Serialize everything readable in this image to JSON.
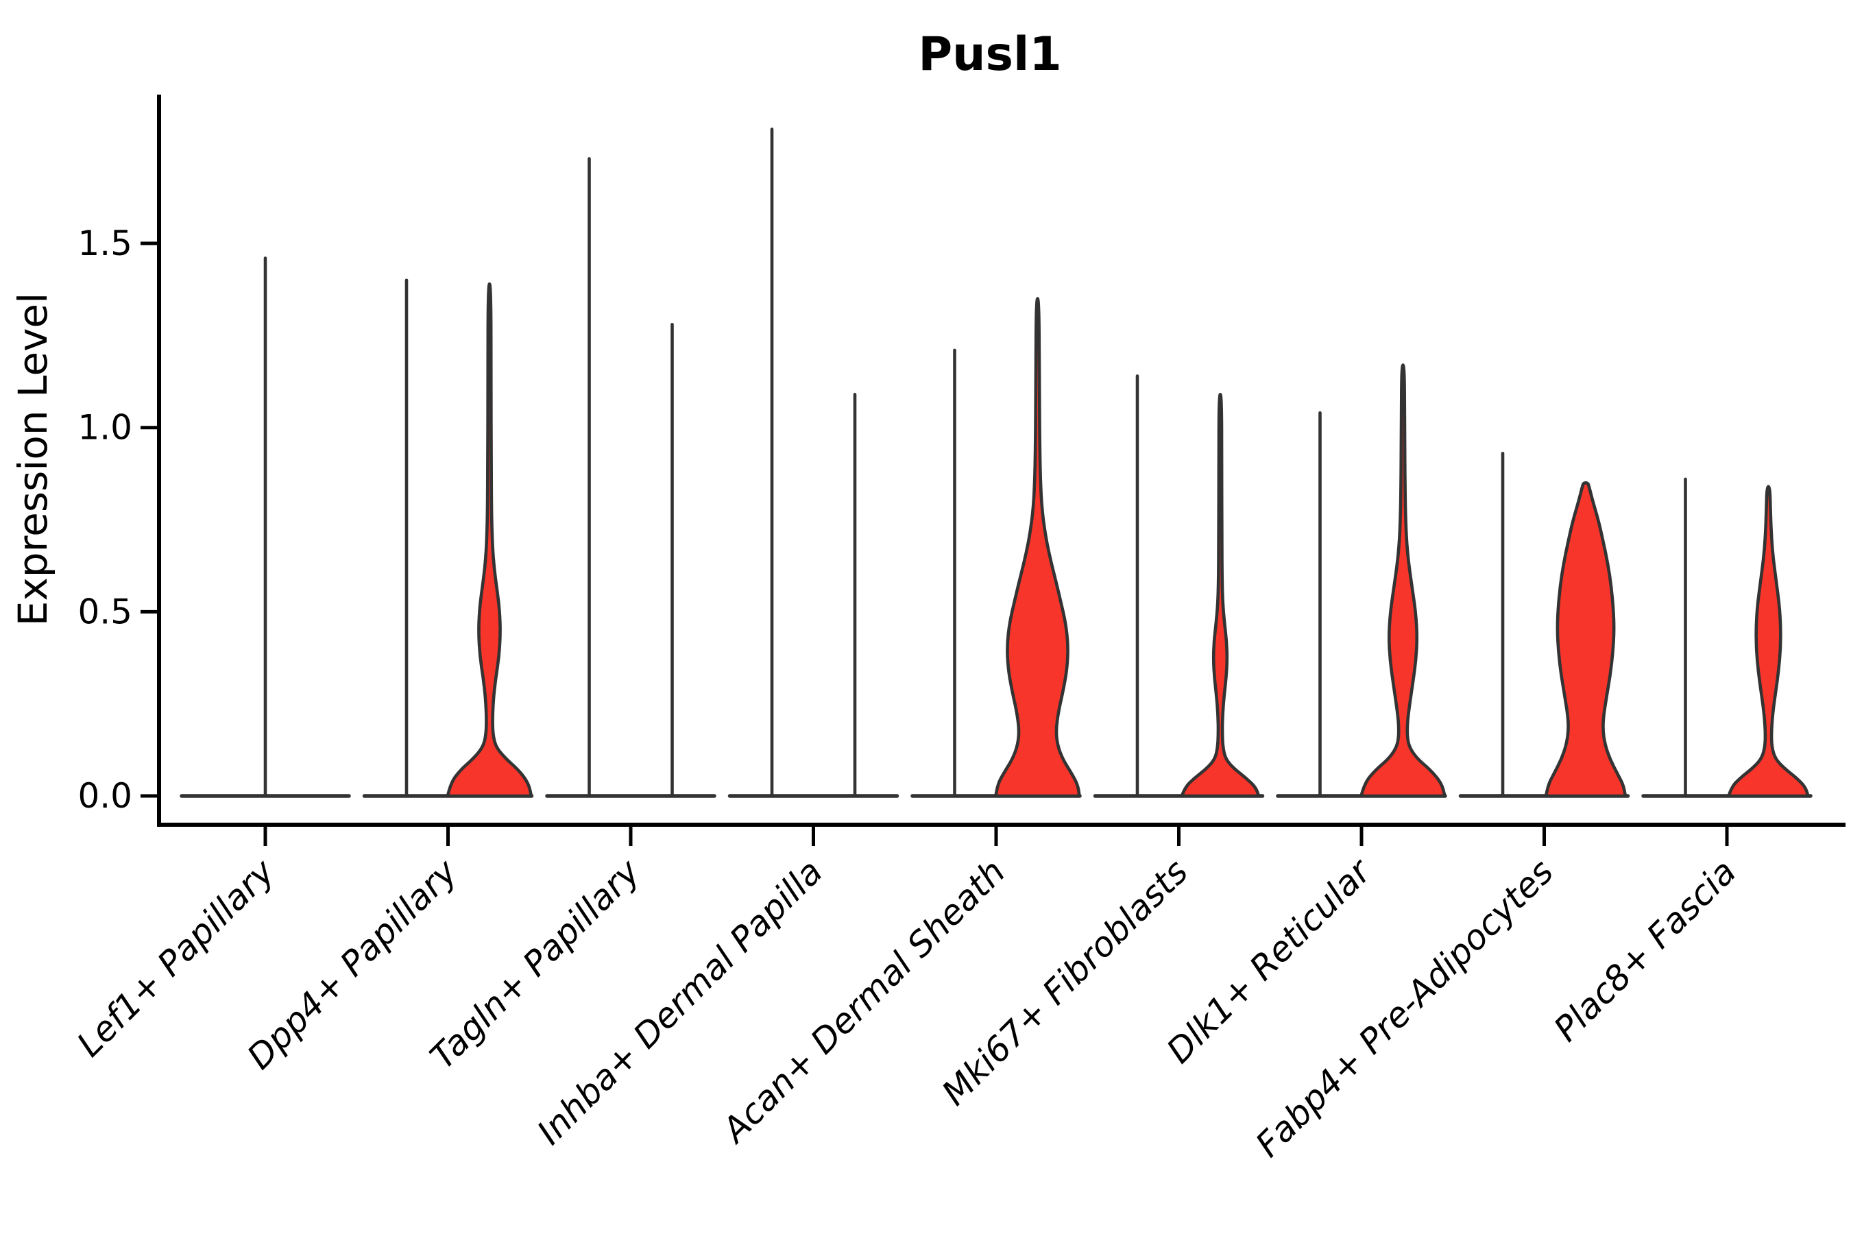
{
  "chart_data": {
    "type": "violin",
    "title": "Pusl1",
    "ylabel": "Expression Level",
    "xlabel": "",
    "legend": "none",
    "grid": false,
    "background_color": "#ffffff",
    "fill_color": "#F8352A",
    "outline_color": "#333333",
    "axis_color": "#000000",
    "ytick_labels": [
      "0.0",
      "0.5",
      "1.0",
      "1.5"
    ],
    "ytick_values": [
      0.0,
      0.5,
      1.0,
      1.5
    ],
    "ylim": [
      -0.08,
      1.9
    ],
    "categories": [
      "Lef1+ Papillary",
      "Dpp4+ Papillary",
      "Tagln+ Papillary",
      "Inhba+ Dermal Papilla",
      "Acan+ Dermal Sheath",
      "Mki67+ Fibroblasts",
      "Dlk1+ Reticular",
      "Fabp4+ Pre-Adipocytes",
      "Plac8+ Fascia"
    ],
    "violins": [
      {
        "category": "Lef1+ Papillary",
        "parts": [
          {
            "offset": 0,
            "kind": "spike",
            "max": 1.46
          }
        ]
      },
      {
        "category": "Dpp4+ Papillary",
        "parts": [
          {
            "offset": -1,
            "kind": "spike",
            "max": 1.4
          },
          {
            "offset": 1,
            "kind": "density",
            "max": 1.39,
            "profile": [
              [
                0,
                1.0
              ],
              [
                0.035,
                0.93
              ],
              [
                0.07,
                0.7
              ],
              [
                0.1,
                0.4
              ],
              [
                0.13,
                0.17
              ],
              [
                0.16,
                0.09
              ],
              [
                0.2,
                0.07
              ],
              [
                0.26,
                0.09
              ],
              [
                0.32,
                0.15
              ],
              [
                0.38,
                0.23
              ],
              [
                0.44,
                0.26
              ],
              [
                0.5,
                0.245
              ],
              [
                0.56,
                0.18
              ],
              [
                0.62,
                0.11
              ],
              [
                0.68,
                0.07
              ],
              [
                0.76,
                0.05
              ],
              [
                0.9,
                0.042
              ],
              [
                1.1,
                0.038
              ],
              [
                1.39,
                0.034
              ]
            ]
          }
        ]
      },
      {
        "category": "Tagln+ Papillary",
        "parts": [
          {
            "offset": -1,
            "kind": "spike",
            "max": 1.73
          },
          {
            "offset": 1,
            "kind": "spike",
            "max": 1.28
          }
        ]
      },
      {
        "category": "Inhba+ Dermal Papilla",
        "parts": [
          {
            "offset": -1,
            "kind": "spike",
            "max": 1.81
          },
          {
            "offset": 1,
            "kind": "spike",
            "max": 1.09
          }
        ]
      },
      {
        "category": "Acan+ Dermal Sheath",
        "parts": [
          {
            "offset": -1,
            "kind": "spike",
            "max": 1.21
          },
          {
            "offset": 1,
            "kind": "density",
            "max": 1.35,
            "profile": [
              [
                0,
                1.0
              ],
              [
                0.03,
                0.96
              ],
              [
                0.06,
                0.82
              ],
              [
                0.1,
                0.6
              ],
              [
                0.14,
                0.47
              ],
              [
                0.18,
                0.44
              ],
              [
                0.23,
                0.5
              ],
              [
                0.29,
                0.62
              ],
              [
                0.35,
                0.71
              ],
              [
                0.41,
                0.73
              ],
              [
                0.47,
                0.67
              ],
              [
                0.53,
                0.55
              ],
              [
                0.6,
                0.4
              ],
              [
                0.66,
                0.27
              ],
              [
                0.72,
                0.17
              ],
              [
                0.78,
                0.105
              ],
              [
                0.85,
                0.07
              ],
              [
                0.95,
                0.052
              ],
              [
                1.1,
                0.042
              ],
              [
                1.35,
                0.034
              ]
            ]
          }
        ]
      },
      {
        "category": "Mki67+ Fibroblasts",
        "parts": [
          {
            "offset": -1,
            "kind": "spike",
            "max": 1.14
          },
          {
            "offset": 1,
            "kind": "density",
            "max": 1.09,
            "profile": [
              [
                0,
                0.92
              ],
              [
                0.025,
                0.84
              ],
              [
                0.05,
                0.6
              ],
              [
                0.075,
                0.32
              ],
              [
                0.1,
                0.13
              ],
              [
                0.13,
                0.065
              ],
              [
                0.17,
                0.048
              ],
              [
                0.22,
                0.055
              ],
              [
                0.27,
                0.09
              ],
              [
                0.32,
                0.14
              ],
              [
                0.37,
                0.165
              ],
              [
                0.42,
                0.15
              ],
              [
                0.47,
                0.1
              ],
              [
                0.52,
                0.06
              ],
              [
                0.58,
                0.045
              ],
              [
                0.7,
                0.038
              ],
              [
                0.9,
                0.034
              ],
              [
                1.09,
                0.03
              ]
            ]
          }
        ]
      },
      {
        "category": "Dlk1+ Reticular",
        "parts": [
          {
            "offset": -1,
            "kind": "spike",
            "max": 1.04
          },
          {
            "offset": 1,
            "kind": "density",
            "max": 1.17,
            "profile": [
              [
                0,
                1.0
              ],
              [
                0.035,
                0.92
              ],
              [
                0.07,
                0.66
              ],
              [
                0.1,
                0.35
              ],
              [
                0.13,
                0.16
              ],
              [
                0.16,
                0.1
              ],
              [
                0.2,
                0.105
              ],
              [
                0.25,
                0.16
              ],
              [
                0.31,
                0.24
              ],
              [
                0.37,
                0.31
              ],
              [
                0.43,
                0.34
              ],
              [
                0.49,
                0.31
              ],
              [
                0.55,
                0.24
              ],
              [
                0.61,
                0.16
              ],
              [
                0.67,
                0.1
              ],
              [
                0.74,
                0.065
              ],
              [
                0.85,
                0.048
              ],
              [
                1.0,
                0.04
              ],
              [
                1.17,
                0.033
              ]
            ]
          }
        ]
      },
      {
        "category": "Fabp4+ Pre-Adipocytes",
        "parts": [
          {
            "offset": -1,
            "kind": "spike",
            "max": 0.93
          },
          {
            "offset": 1,
            "kind": "density",
            "max": 0.85,
            "profile": [
              [
                0,
                0.95
              ],
              [
                0.03,
                0.9
              ],
              [
                0.06,
                0.76
              ],
              [
                0.1,
                0.58
              ],
              [
                0.14,
                0.46
              ],
              [
                0.18,
                0.41
              ],
              [
                0.22,
                0.43
              ],
              [
                0.27,
                0.5
              ],
              [
                0.33,
                0.59
              ],
              [
                0.39,
                0.65
              ],
              [
                0.45,
                0.68
              ],
              [
                0.51,
                0.66
              ],
              [
                0.57,
                0.61
              ],
              [
                0.63,
                0.53
              ],
              [
                0.69,
                0.42
              ],
              [
                0.75,
                0.3
              ],
              [
                0.8,
                0.17
              ],
              [
                0.84,
                0.08
              ],
              [
                0.85,
                0.05
              ]
            ]
          }
        ]
      },
      {
        "category": "Plac8+ Fascia",
        "parts": [
          {
            "offset": -1,
            "kind": "spike",
            "max": 0.86
          },
          {
            "offset": 1,
            "kind": "density",
            "max": 0.84,
            "profile": [
              [
                0,
                0.95
              ],
              [
                0.025,
                0.88
              ],
              [
                0.05,
                0.66
              ],
              [
                0.075,
                0.38
              ],
              [
                0.1,
                0.17
              ],
              [
                0.13,
                0.085
              ],
              [
                0.17,
                0.07
              ],
              [
                0.22,
                0.1
              ],
              [
                0.28,
                0.17
              ],
              [
                0.34,
                0.245
              ],
              [
                0.4,
                0.29
              ],
              [
                0.46,
                0.295
              ],
              [
                0.52,
                0.26
              ],
              [
                0.58,
                0.19
              ],
              [
                0.64,
                0.12
              ],
              [
                0.7,
                0.075
              ],
              [
                0.77,
                0.05
              ],
              [
                0.84,
                0.035
              ]
            ]
          }
        ]
      }
    ]
  }
}
